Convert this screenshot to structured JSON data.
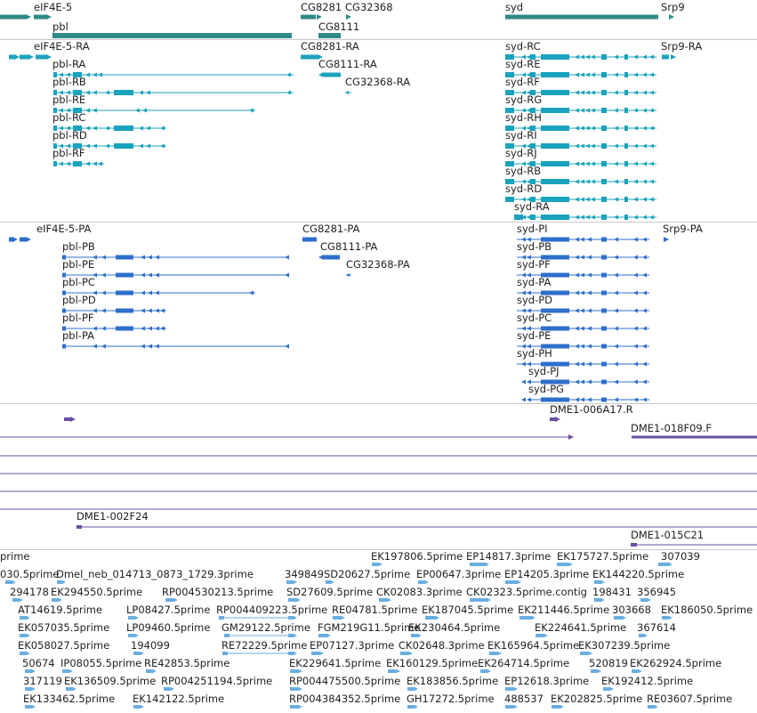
{
  "colors": {
    "genes": "#2e8b88",
    "transcripts": "#1aa3bc",
    "proteins": "#2f6fcc",
    "clones": "#6a4fa0",
    "est": "#6aaee0",
    "separator": "#c8c8c8",
    "text": "#222222"
  },
  "tracks": {
    "genes": {
      "labels": [
        "eIF4E-5",
        "CG8281",
        "CG32368",
        "syd",
        "Srp9",
        "pbl",
        "CG8111"
      ]
    },
    "transcripts": {
      "labels": [
        "eIF4E-5-RA",
        "CG8281-RA",
        "Srp9-RA",
        "syd-RC",
        "pbl-RA",
        "CG8111-RA",
        "syd-RE",
        "pbl-RB",
        "CG32368-RA",
        "syd-RF",
        "pbl-RE",
        "syd-RG",
        "pbl-RC",
        "syd-RH",
        "pbl-RD",
        "syd-RI",
        "pbl-RF",
        "syd-RJ",
        "syd-RB",
        "syd-RD",
        "syd-RA"
      ]
    },
    "proteins": {
      "labels": [
        "eIF4E-5-PA",
        "CG8281-PA",
        "syd-PI",
        "Srp9-PA",
        "pbl-PB",
        "CG8111-PA",
        "syd-PB",
        "pbl-PE",
        "CG32368-PA",
        "syd-PF",
        "pbl-PC",
        "syd-PA",
        "pbl-PD",
        "syd-PD",
        "pbl-PF",
        "syd-PC",
        "pbl-PA",
        "syd-PE",
        "syd-PH",
        "syd-PJ",
        "syd-PG"
      ]
    },
    "clones": {
      "labels": [
        "DME1-006A17.R",
        "DME1-018F09.F",
        "DME1-002F24",
        "DME1-015C21"
      ]
    },
    "est": {
      "labels": [
        "prime",
        "EK197806.5prime",
        "EP14817.3prime",
        "EK175727.5prime",
        "307039",
        "030.5prime",
        "Dmel_neb_014713_0873_1729.3prime",
        "349849",
        "SD20627.5prime",
        "EP00647.3prime",
        "EP14205.3prime",
        "EK144220.5prime",
        "294178",
        "EK294550.5prime",
        "RP004530213.5prime",
        "SD27609.5prime",
        "CK02083.3prime",
        "CK02323.5prime.contig",
        "198431",
        "356945",
        "AT14619.5prime",
        "LP08427.5prime",
        "RP004409223.5prime",
        "RE04781.5prime",
        "EK187045.5prime",
        "EK211446.5prime",
        "303668",
        "EK186050.5prime",
        "EK057035.5prime",
        "LP09460.5prime",
        "GM29122.5prime",
        "FGM219G11.5prime",
        "EK230464.5prime",
        "EK224641.5prime",
        "367614",
        "EK058027.5prime",
        "194099",
        "RE72229.5prime",
        "EP07127.3prime",
        "CK02648.3prime",
        "EK165964.5prime",
        "EK307239.5prime",
        "50674",
        "IP08055.5prime",
        "RE42853.5prime",
        "EK229641.5prime",
        "EK160129.5prime",
        "EK264714.5prime",
        "520819",
        "EK262924.5prime",
        "317119",
        "EK136509.5prime",
        "RP004251194.5prime",
        "RP004475500.5prime",
        "EK183856.5prime",
        "EP12618.3prime",
        "EK192412.5prime",
        "EK133462.5prime",
        "EK142122.5prime",
        "RP004384352.5prime",
        "GH17272.5prime",
        "488537",
        "EK202825.5prime",
        "RE03607.5prime"
      ]
    }
  }
}
